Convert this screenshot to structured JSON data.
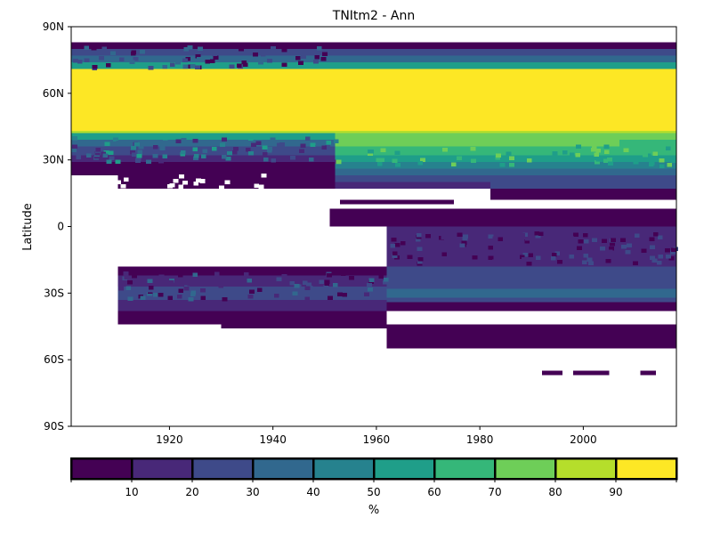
{
  "chart_data": {
    "type": "heatmap",
    "title": "TNItm2 - Ann",
    "ylabel": "Latitude",
    "xlabel": "",
    "x_range": [
      1901,
      2018
    ],
    "y_range": [
      -90,
      90
    ],
    "x_ticks": [
      {
        "value": 1920,
        "label": "1920"
      },
      {
        "value": 1940,
        "label": "1940"
      },
      {
        "value": 1960,
        "label": "1960"
      },
      {
        "value": 1980,
        "label": "1980"
      },
      {
        "value": 2000,
        "label": "2000"
      }
    ],
    "y_ticks": [
      {
        "value": 90,
        "label": "90N"
      },
      {
        "value": 60,
        "label": "60N"
      },
      {
        "value": 30,
        "label": "30N"
      },
      {
        "value": 0,
        "label": "0"
      },
      {
        "value": -30,
        "label": "30S"
      },
      {
        "value": -60,
        "label": "60S"
      },
      {
        "value": -90,
        "label": "90S"
      }
    ],
    "colorbar": {
      "label": "%",
      "range": [
        0,
        100
      ],
      "ticks": [
        {
          "value": 10,
          "label": "10"
        },
        {
          "value": 20,
          "label": "20"
        },
        {
          "value": 30,
          "label": "30"
        },
        {
          "value": 40,
          "label": "40"
        },
        {
          "value": 50,
          "label": "50"
        },
        {
          "value": 60,
          "label": "60"
        },
        {
          "value": 70,
          "label": "70"
        },
        {
          "value": 80,
          "label": "80"
        },
        {
          "value": 90,
          "label": "90"
        }
      ],
      "bins": [
        {
          "range": [
            0,
            10
          ],
          "color": "#440154"
        },
        {
          "range": [
            10,
            20
          ],
          "color": "#482878"
        },
        {
          "range": [
            20,
            30
          ],
          "color": "#3e4a89"
        },
        {
          "range": [
            30,
            40
          ],
          "color": "#31688e"
        },
        {
          "range": [
            40,
            50
          ],
          "color": "#26828e"
        },
        {
          "range": [
            50,
            60
          ],
          "color": "#1f9e89"
        },
        {
          "range": [
            60,
            70
          ],
          "color": "#35b779"
        },
        {
          "range": [
            70,
            80
          ],
          "color": "#6ece58"
        },
        {
          "range": [
            80,
            90
          ],
          "color": "#b5de2b"
        },
        {
          "range": [
            90,
            100
          ],
          "color": "#fde725"
        }
      ]
    },
    "cells": [
      {
        "x": [
          1901,
          2018
        ],
        "y": [
          80,
          83
        ],
        "value": 5
      },
      {
        "x": [
          1901,
          2018
        ],
        "y": [
          77,
          80
        ],
        "value": 25
      },
      {
        "x": [
          1901,
          2018
        ],
        "y": [
          74,
          77
        ],
        "value": 35
      },
      {
        "x": [
          1901,
          2018
        ],
        "y": [
          71,
          74
        ],
        "value": 55
      },
      {
        "x": [
          1901,
          2018
        ],
        "y": [
          43,
          71
        ],
        "value": 95
      },
      {
        "x": [
          1901,
          2018
        ],
        "y": [
          42,
          43
        ],
        "value": 85
      },
      {
        "x": [
          1901,
          1952
        ],
        "y": [
          39,
          42
        ],
        "value": 55
      },
      {
        "x": [
          1952,
          2018
        ],
        "y": [
          39,
          42
        ],
        "value": 75
      },
      {
        "x": [
          1901,
          1952
        ],
        "y": [
          36,
          39
        ],
        "value": 35
      },
      {
        "x": [
          1952,
          2007
        ],
        "y": [
          36,
          39
        ],
        "value": 75
      },
      {
        "x": [
          2007,
          2018
        ],
        "y": [
          36,
          39
        ],
        "value": 65
      },
      {
        "x": [
          1901,
          1952
        ],
        "y": [
          32,
          36
        ],
        "value": 25
      },
      {
        "x": [
          1952,
          2018
        ],
        "y": [
          32,
          36
        ],
        "value": 65
      },
      {
        "x": [
          1901,
          1952
        ],
        "y": [
          29,
          32
        ],
        "value": 15
      },
      {
        "x": [
          1952,
          2018
        ],
        "y": [
          29,
          32
        ],
        "value": 55
      },
      {
        "x": [
          1901,
          1952
        ],
        "y": [
          23,
          29
        ],
        "value": 5
      },
      {
        "x": [
          1952,
          2018
        ],
        "y": [
          26,
          29
        ],
        "value": 45
      },
      {
        "x": [
          1952,
          2018
        ],
        "y": [
          23,
          26
        ],
        "value": 35
      },
      {
        "x": [
          1910,
          1952
        ],
        "y": [
          17,
          23
        ],
        "value": 5
      },
      {
        "x": [
          1952,
          2018
        ],
        "y": [
          20,
          23
        ],
        "value": 25
      },
      {
        "x": [
          1952,
          1982
        ],
        "y": [
          17,
          20
        ],
        "value": 15
      },
      {
        "x": [
          1982,
          2018
        ],
        "y": [
          17,
          20
        ],
        "value": 25
      },
      {
        "x": [
          1982,
          2018
        ],
        "y": [
          12,
          17
        ],
        "value": 5
      },
      {
        "x": [
          1953,
          1975
        ],
        "y": [
          10,
          12
        ],
        "value": 5
      },
      {
        "x": [
          1951,
          2018
        ],
        "y": [
          0,
          8
        ],
        "value": 5
      },
      {
        "x": [
          1962,
          2018
        ],
        "y": [
          -9,
          0
        ],
        "value": 15
      },
      {
        "x": [
          1962,
          2018
        ],
        "y": [
          -18,
          -9
        ],
        "value": 15
      },
      {
        "x": [
          1910,
          1962
        ],
        "y": [
          -18,
          -22
        ],
        "value": 5
      },
      {
        "x": [
          1910,
          1962
        ],
        "y": [
          -22,
          -27
        ],
        "value": 15
      },
      {
        "x": [
          1962,
          2018
        ],
        "y": [
          -18,
          -28
        ],
        "value": 25
      },
      {
        "x": [
          1910,
          1962
        ],
        "y": [
          -27,
          -33
        ],
        "value": 25
      },
      {
        "x": [
          1962,
          2018
        ],
        "y": [
          -28,
          -32
        ],
        "value": 35
      },
      {
        "x": [
          1962,
          2018
        ],
        "y": [
          -32,
          -34
        ],
        "value": 25
      },
      {
        "x": [
          1910,
          1962
        ],
        "y": [
          -33,
          -38
        ],
        "value": 15
      },
      {
        "x": [
          1962,
          2018
        ],
        "y": [
          -34,
          -38
        ],
        "value": 5
      },
      {
        "x": [
          1910,
          1962
        ],
        "y": [
          -38,
          -44
        ],
        "value": 5
      },
      {
        "x": [
          1930,
          2018
        ],
        "y": [
          -44,
          -46
        ],
        "value": 5
      },
      {
        "x": [
          1962,
          2018
        ],
        "y": [
          -46,
          -55
        ],
        "value": 5
      },
      {
        "x": [
          1992,
          1996
        ],
        "y": [
          -65,
          -67
        ],
        "value": 5
      },
      {
        "x": [
          1998,
          2005
        ],
        "y": [
          -65,
          -67
        ],
        "value": 5
      },
      {
        "x": [
          2011,
          2014
        ],
        "y": [
          -65,
          -67
        ],
        "value": 5
      }
    ]
  }
}
